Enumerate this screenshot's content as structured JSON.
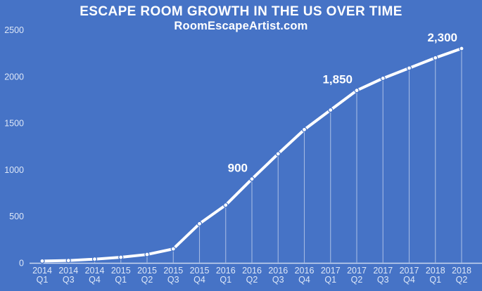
{
  "header": {
    "title": "ESCAPE ROOM GROWTH IN THE US OVER TIME",
    "subtitle": "RoomEscapeArtist.com"
  },
  "colors": {
    "background": "#4673c6",
    "line": "#ffffff",
    "marker_fill": "#ffffff",
    "marker_ring": "#4673c6",
    "title_text": "#ffffff",
    "axis_text": "#dde7f7",
    "annotation_text": "#ffffff",
    "axis_line": "rgba(255,255,255,0.72)",
    "dropline": "rgba(255,255,255,0.5)"
  },
  "chart_data": {
    "type": "line",
    "title": "ESCAPE ROOM GROWTH IN THE US OVER TIME",
    "subtitle": "RoomEscapeArtist.com",
    "xlabel": "",
    "ylabel": "",
    "categories": [
      "2014 Q1",
      "2014 Q3",
      "2014 Q4",
      "2015 Q1",
      "2015 Q2",
      "2015 Q3",
      "2015 Q4",
      "2016 Q1",
      "2016 Q2",
      "2016 Q3",
      "2016 Q4",
      "2017 Q1",
      "2017 Q2",
      "2017 Q3",
      "2017 Q4",
      "2018 Q1",
      "2018 Q2"
    ],
    "values": [
      20,
      25,
      40,
      60,
      90,
      150,
      420,
      620,
      900,
      1170,
      1430,
      1640,
      1850,
      1980,
      2090,
      2200,
      2300
    ],
    "y_ticks": [
      0,
      500,
      1000,
      1500,
      2000,
      2500
    ],
    "ylim": [
      0,
      2500
    ],
    "grid": false,
    "legend": "none",
    "droplines": true,
    "marker": "circle",
    "annotations": [
      {
        "category": "2016 Q2",
        "label": "900"
      },
      {
        "category": "2017 Q2",
        "label": "1,850"
      },
      {
        "category": "2018 Q2",
        "label": "2,300"
      }
    ]
  }
}
